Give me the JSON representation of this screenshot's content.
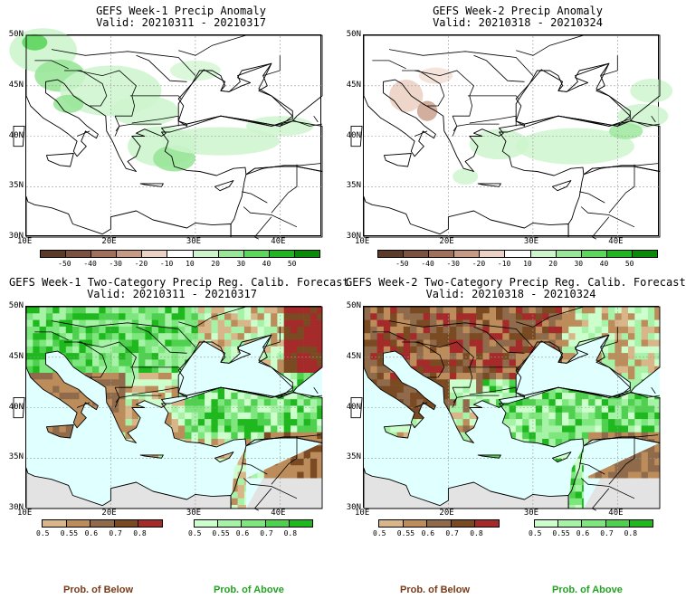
{
  "panels": [
    {
      "title": "GEFS Week-1 Precip Anomaly",
      "valid": "Valid: 20210311 - 20210317",
      "kind": "anom",
      "week": 1
    },
    {
      "title": "GEFS Week-2 Precip Anomaly",
      "valid": "Valid: 20210318 - 20210324",
      "kind": "anom",
      "week": 2
    },
    {
      "title": "GEFS Week-1 Two-Category Precip Reg. Calib. Forecast",
      "valid": "Valid: 20210311 - 20210317",
      "kind": "prob",
      "week": 1
    },
    {
      "title": "GEFS Week-2 Two-Category Precip Reg. Calib. Forecast",
      "valid": "Valid: 20210318 - 20210324",
      "kind": "prob",
      "week": 2
    }
  ],
  "lat_labels": [
    "50N",
    "45N",
    "40N",
    "35N",
    "30N"
  ],
  "lon_labels": [
    "10E",
    "20E",
    "30E",
    "40E"
  ],
  "anomaly_scale": {
    "ticks": [
      "-50",
      "-40",
      "-30",
      "-20",
      "-10",
      "10",
      "20",
      "30",
      "40",
      "50"
    ],
    "colors": [
      "#5b3a29",
      "#7d5140",
      "#a0705a",
      "#c79a86",
      "#ecd2c4",
      "#ffffff",
      "#ccf5cc",
      "#99e699",
      "#5cd65c",
      "#21b521",
      "#098a09"
    ]
  },
  "below_scale": {
    "ticks": [
      "0.5",
      "0.55",
      "0.6",
      "0.7",
      "0.8"
    ],
    "colors": [
      "#d8b689",
      "#bc8c5a",
      "#8f6b4b",
      "#7a4a22",
      "#a52a2a"
    ],
    "caption": "Prob. of Below",
    "caption_color": "#7a3b18"
  },
  "above_scale": {
    "ticks": [
      "0.5",
      "0.55",
      "0.6",
      "0.7",
      "0.8"
    ],
    "colors": [
      "#ccffcc",
      "#a6f2a6",
      "#7de67d",
      "#4fd14f",
      "#1fb81f"
    ],
    "caption": "Prob. of Above",
    "caption_color": "#22a322"
  },
  "colors": {
    "sea": "#e0ffff",
    "land_mask": "#e3e3e3",
    "coast": "#000000"
  }
}
